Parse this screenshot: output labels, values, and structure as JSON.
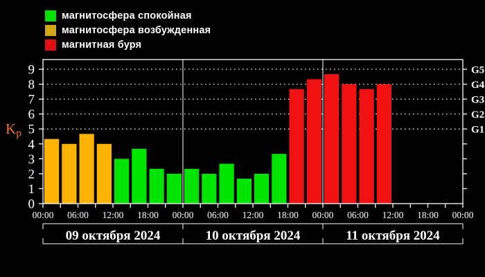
{
  "legend": {
    "items": [
      {
        "key": "calm",
        "label": "магнитосфера спокойная",
        "color": "#00e400"
      },
      {
        "key": "excited",
        "label": "магнитосфера возбужденная",
        "color": "#d4a812"
      },
      {
        "key": "storm",
        "label": "магнитная буря",
        "color": "#e01010"
      }
    ]
  },
  "chart_data": {
    "type": "bar",
    "title": "",
    "ylabel": "Kp",
    "ylabel_color": "#e8742c",
    "axis_color": "#ffffff",
    "background": "#000000",
    "ylim": [
      0,
      9.65
    ],
    "yticks": [
      0,
      1,
      2,
      3,
      4,
      5,
      6,
      7,
      8,
      9
    ],
    "grid_kp_levels": [
      5,
      6,
      7,
      8,
      9
    ],
    "grid_style": "dotted",
    "right_scale": [
      {
        "kp": 5,
        "label": "G1"
      },
      {
        "kp": 6,
        "label": "G2"
      },
      {
        "kp": 7,
        "label": "G3"
      },
      {
        "kp": 8,
        "label": "G4"
      },
      {
        "kp": 9,
        "label": "G5"
      }
    ],
    "bar_colors": {
      "calm": "#00e400",
      "excited": "#fbb300",
      "storm": "#f01212"
    },
    "hours_per_bar": 3,
    "bars_per_day": 8,
    "time_tick_labels": [
      "00:00",
      "06:00",
      "12:00",
      "18:00"
    ],
    "days": [
      {
        "date": "09 октября 2024",
        "values": [
          4.33,
          4.0,
          4.67,
          4.0,
          3.0,
          3.67,
          2.33,
          2.0
        ],
        "status": [
          "excited",
          "excited",
          "excited",
          "excited",
          "calm",
          "calm",
          "calm",
          "calm"
        ]
      },
      {
        "date": "10 октября 2024",
        "values": [
          2.33,
          2.0,
          2.67,
          1.67,
          2.0,
          3.33,
          7.67,
          8.33
        ],
        "status": [
          "calm",
          "calm",
          "calm",
          "calm",
          "calm",
          "calm",
          "storm",
          "storm"
        ]
      },
      {
        "date": "11 октября 2024",
        "values": [
          8.67,
          8.0,
          7.67,
          8.0,
          null,
          null,
          null,
          null
        ],
        "status": [
          "storm",
          "storm",
          "storm",
          "storm",
          null,
          null,
          null,
          null
        ]
      }
    ]
  }
}
